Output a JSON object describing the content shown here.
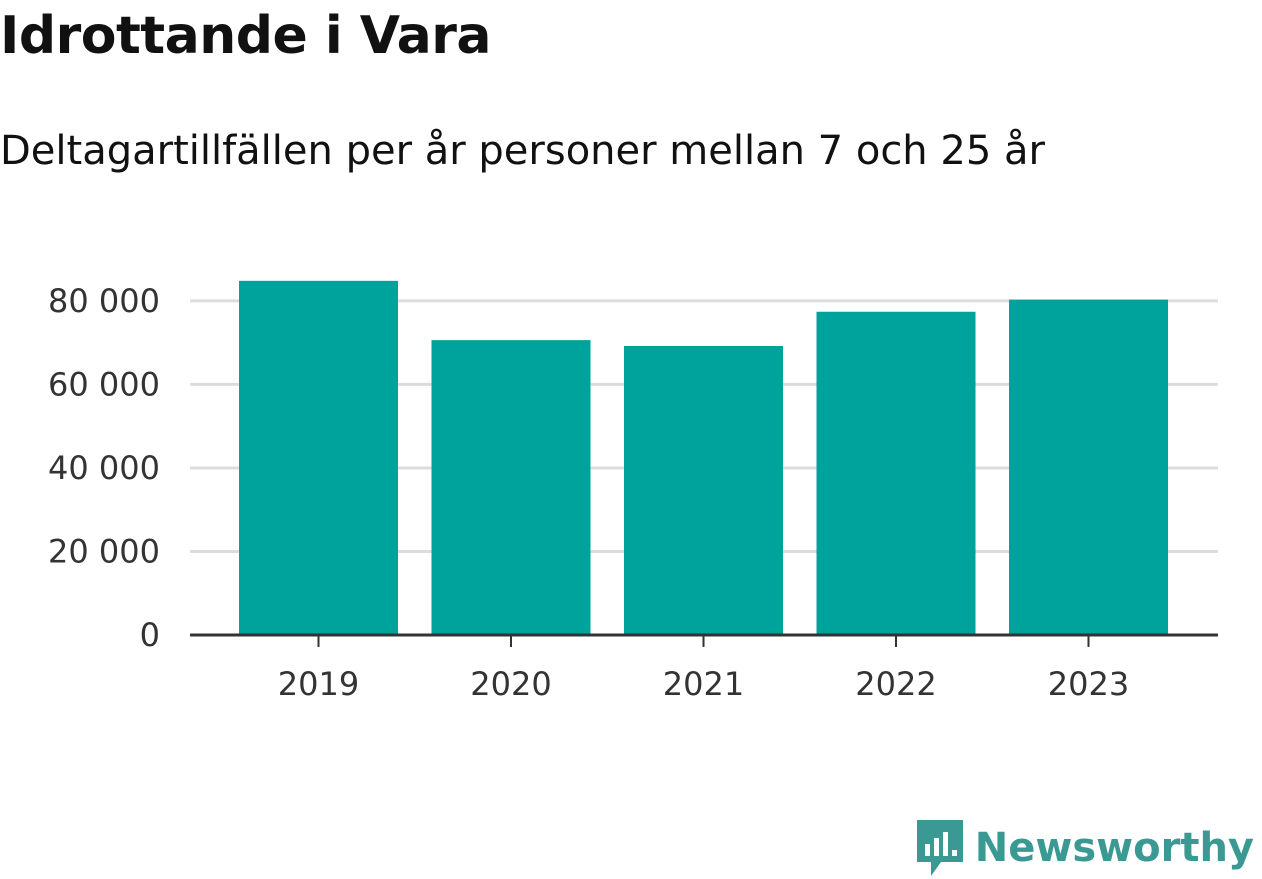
{
  "chart_data": {
    "type": "bar",
    "title": "Idrottande i Vara",
    "subtitle": "Deltagartillfällen per år personer mellan 7 och 25 år",
    "categories": [
      "2019",
      "2020",
      "2021",
      "2022",
      "2023"
    ],
    "values": [
      84800,
      70600,
      69200,
      77400,
      80300
    ],
    "ylim": [
      0,
      85000
    ],
    "yticks": [
      0,
      20000,
      40000,
      60000,
      80000
    ],
    "ytick_labels": [
      "0",
      "20 000",
      "40 000",
      "60 000",
      "80 000"
    ],
    "xlabel": "",
    "ylabel": "",
    "grid": true,
    "bar_color": "#00a39b"
  },
  "branding": {
    "logo_text": "Newsworthy",
    "logo_color": "#3a9a93"
  }
}
